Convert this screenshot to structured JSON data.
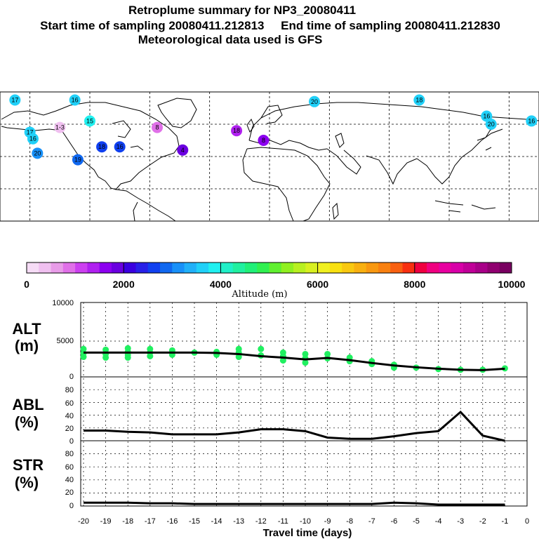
{
  "header": {
    "title": "Retroplume summary for NP3_20080411",
    "sampling": "Start time of sampling 20080411.212813     End time of sampling 20080411.212830",
    "met": "Meteorological data used is GFS"
  },
  "colorbar": {
    "label": "Altitude (m)",
    "ticks": [
      "0",
      "2000",
      "4000",
      "6000",
      "8000",
      "10000"
    ],
    "colors": [
      "#f6dcf6",
      "#f0c0f0",
      "#e89ce8",
      "#e070e8",
      "#cc40f0",
      "#b020f0",
      "#8c00f0",
      "#6a00e0",
      "#3a00e0",
      "#2820e8",
      "#1040f0",
      "#1068f0",
      "#1890f8",
      "#20b0f8",
      "#20d0f8",
      "#20f0f0",
      "#20f0c8",
      "#20f0a0",
      "#20f078",
      "#30f050",
      "#60f030",
      "#90f020",
      "#b8f020",
      "#d8f020",
      "#f0f020",
      "#f8e010",
      "#f8c810",
      "#f8b010",
      "#f89810",
      "#f88010",
      "#f86010",
      "#f83010",
      "#f00040",
      "#f00080",
      "#e800a0",
      "#d800a8",
      "#c00098",
      "#a80088",
      "#900070",
      "#780060"
    ]
  },
  "panels": {
    "alt": {
      "label1": "ALT",
      "label2": "(m)",
      "yticks": [
        "10000",
        "5000",
        "0"
      ]
    },
    "abl": {
      "label1": "ABL",
      "label2": "(%)",
      "yticks": [
        "80",
        "60",
        "40",
        "20",
        "0"
      ]
    },
    "str": {
      "label1": "STR",
      "label2": "(%)",
      "yticks": [
        "80",
        "60",
        "40",
        "20",
        "0"
      ]
    }
  },
  "xaxis": {
    "label": "Travel time (days)",
    "ticks": [
      "-20",
      "-19",
      "-18",
      "-17",
      "-16",
      "-15",
      "-14",
      "-13",
      "-12",
      "-11",
      "-10",
      "-9",
      "-8",
      "-7",
      "-6",
      "-5",
      "-4",
      "-3",
      "-2",
      "-1",
      "0"
    ]
  },
  "map": {
    "labels": [
      {
        "lon": -170,
        "lat": 75,
        "text": "17",
        "color": "#20d0f8"
      },
      {
        "lon": -130,
        "lat": 75,
        "text": "16",
        "color": "#20d0f8"
      },
      {
        "lon": 30,
        "lat": 74,
        "text": "20",
        "color": "#20d0f8"
      },
      {
        "lon": 100,
        "lat": 75,
        "text": "18",
        "color": "#20d0f8"
      },
      {
        "lon": 145,
        "lat": 65,
        "text": "16",
        "color": "#20d0f8"
      },
      {
        "lon": 148,
        "lat": 60,
        "text": "20",
        "color": "#20d0f8"
      },
      {
        "lon": 175,
        "lat": 62,
        "text": "16",
        "color": "#20d0f8"
      },
      {
        "lon": -160,
        "lat": 55,
        "text": "17",
        "color": "#20d0f8"
      },
      {
        "lon": -158,
        "lat": 51,
        "text": "16",
        "color": "#20d0f8"
      },
      {
        "lon": -155,
        "lat": 42,
        "text": "20",
        "color": "#1890f8"
      },
      {
        "lon": -128,
        "lat": 38,
        "text": "19",
        "color": "#1068f0"
      },
      {
        "lon": -112,
        "lat": 46,
        "text": "18",
        "color": "#1040f0"
      },
      {
        "lon": -100,
        "lat": 46,
        "text": "16",
        "color": "#1040f0"
      },
      {
        "lon": -140,
        "lat": 58,
        "text": "1-3",
        "color": "#f0c0f0"
      },
      {
        "lon": -120,
        "lat": 62,
        "text": "15",
        "color": "#20f0f0"
      },
      {
        "lon": -75,
        "lat": 58,
        "text": "8",
        "color": "#e070e8"
      },
      {
        "lon": -22,
        "lat": 56,
        "text": "18",
        "color": "#b020f0"
      },
      {
        "lon": -4,
        "lat": 50,
        "text": "8",
        "color": "#8c00f0"
      },
      {
        "lon": -58,
        "lat": 44,
        "text": "4",
        "color": "#6a00e0"
      }
    ]
  },
  "chart_data": [
    {
      "type": "line",
      "title": "ALT",
      "xlabel": "Travel time (days)",
      "ylabel": "(m)",
      "xlim": [
        -20,
        0
      ],
      "ylim": [
        0,
        10000
      ],
      "series": [
        {
          "name": "mean altitude",
          "x": [
            -20,
            -19,
            -18,
            -17,
            -16,
            -15,
            -14,
            -13,
            -12,
            -11,
            -10,
            -9,
            -8,
            -7,
            -6,
            -5,
            -4,
            -3,
            -2,
            -1
          ],
          "y": [
            3000,
            3000,
            3000,
            3000,
            3000,
            3000,
            2950,
            2800,
            2500,
            2300,
            2050,
            2250,
            1950,
            1550,
            1200,
            950,
            750,
            600,
            550,
            750
          ]
        },
        {
          "name": "member altitudes",
          "x": [
            -20,
            -20,
            -20,
            -19,
            -19,
            -19,
            -18,
            -18,
            -18,
            -18,
            -17,
            -17,
            -17,
            -16,
            -16,
            -15,
            -14,
            -14,
            -13,
            -13,
            -13,
            -12,
            -12,
            -11,
            -11,
            -11,
            -10,
            -10,
            -10,
            -9,
            -9,
            -8,
            -8,
            -7,
            -7,
            -6,
            -6,
            -5,
            -4,
            -3,
            -2,
            -1
          ],
          "y": [
            3500,
            2900,
            2400,
            3400,
            2800,
            2300,
            3600,
            3100,
            2700,
            2300,
            3500,
            3000,
            2500,
            3300,
            2700,
            3000,
            3100,
            2700,
            3500,
            3000,
            2400,
            3500,
            2600,
            3000,
            2500,
            1900,
            2800,
            2200,
            1600,
            2800,
            2200,
            2300,
            1800,
            1800,
            1400,
            1300,
            900,
            900,
            700,
            600,
            600,
            800
          ]
        }
      ]
    },
    {
      "type": "line",
      "title": "ABL",
      "ylabel": "(%)",
      "xlim": [
        -20,
        0
      ],
      "ylim": [
        0,
        100
      ],
      "series": [
        {
          "name": "ABL",
          "x": [
            -20,
            -19,
            -18,
            -17,
            -16,
            -15,
            -14,
            -13,
            -12,
            -11,
            -10,
            -9,
            -8,
            -7,
            -6,
            -5,
            -4,
            -3,
            -2,
            -1
          ],
          "y": [
            16,
            16,
            14,
            13,
            10,
            10,
            10,
            13,
            18,
            18,
            15,
            5,
            3,
            3,
            7,
            12,
            15,
            45,
            8,
            0
          ]
        }
      ]
    },
    {
      "type": "line",
      "title": "STR",
      "ylabel": "(%)",
      "xlim": [
        -20,
        0
      ],
      "ylim": [
        0,
        100
      ],
      "series": [
        {
          "name": "STR",
          "x": [
            -20,
            -19,
            -18,
            -17,
            -16,
            -15,
            -14,
            -13,
            -12,
            -11,
            -10,
            -9,
            -8,
            -7,
            -6,
            -5,
            -4,
            -3,
            -2,
            -1
          ],
          "y": [
            3,
            3,
            3,
            2,
            2,
            1,
            1,
            1,
            1,
            1,
            1,
            1,
            1,
            1,
            3,
            2,
            0,
            0,
            0,
            0
          ]
        }
      ]
    }
  ]
}
